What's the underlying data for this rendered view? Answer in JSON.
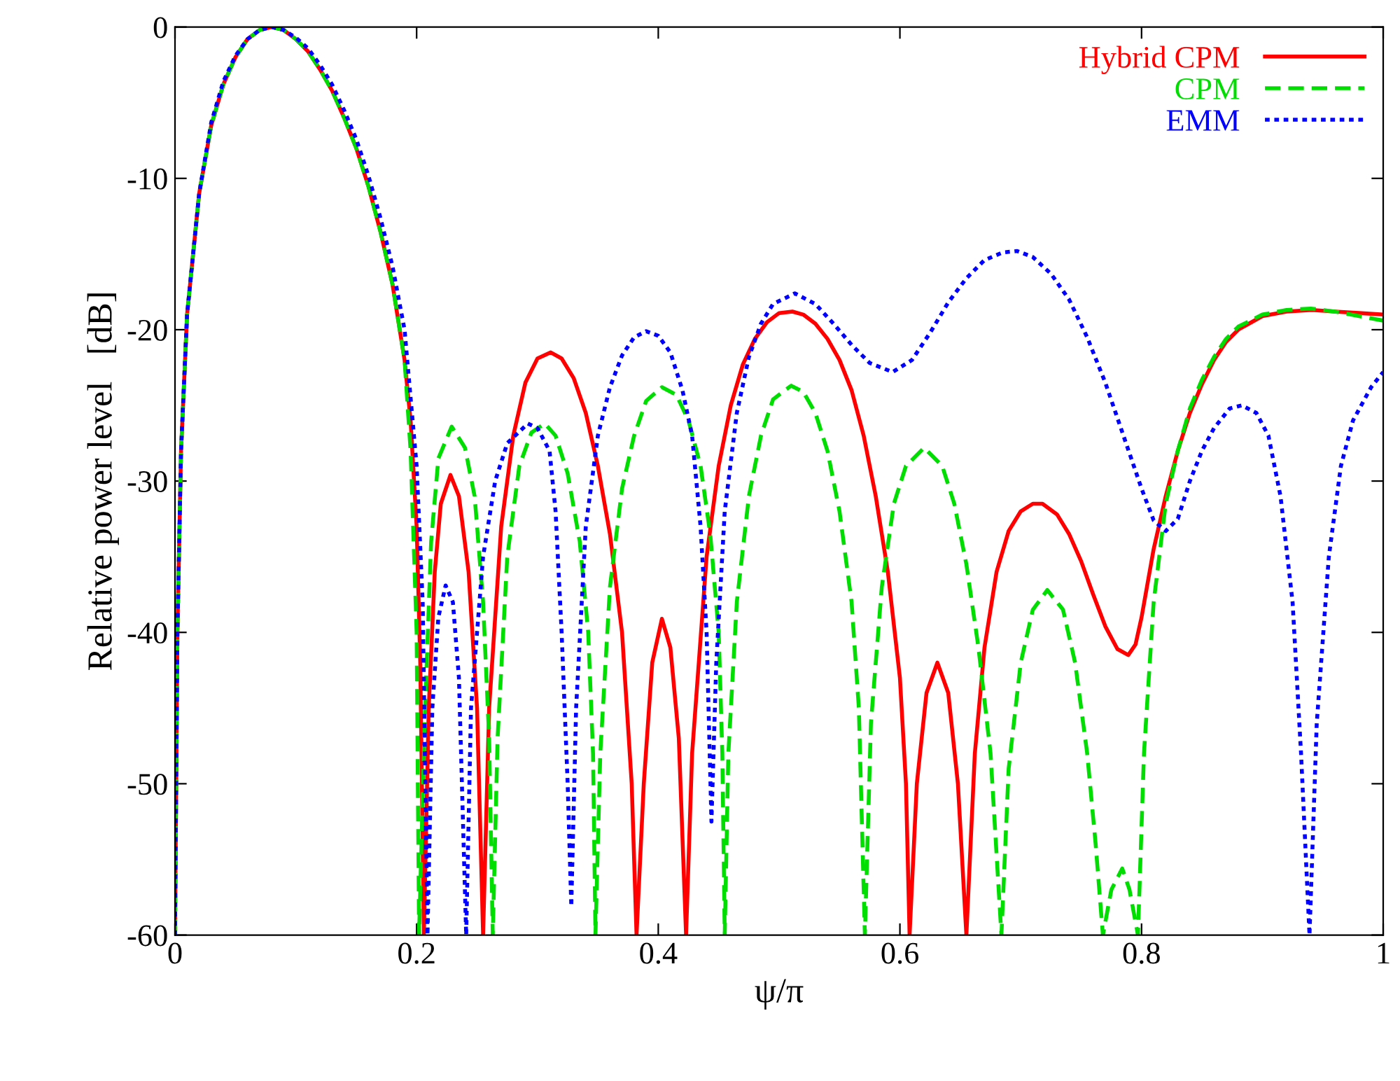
{
  "chart_data": {
    "type": "line",
    "xlabel": "ψ/π",
    "ylabel": "Relative power level   [dB]",
    "xlim": [
      0,
      1
    ],
    "ylim": [
      -60,
      0
    ],
    "xticks": [
      0,
      0.2,
      0.4,
      0.6,
      0.8,
      1
    ],
    "yticks": [
      0,
      -10,
      -20,
      -30,
      -40,
      -50,
      -60
    ],
    "grid": false,
    "legend": "top right",
    "series": [
      {
        "name": "Hybrid CPM",
        "color": "#ff0000",
        "line_style": "solid",
        "x": [
          0,
          0.002,
          0.005,
          0.01,
          0.02,
          0.03,
          0.04,
          0.05,
          0.06,
          0.07,
          0.08,
          0.09,
          0.1,
          0.11,
          0.12,
          0.13,
          0.14,
          0.15,
          0.16,
          0.17,
          0.18,
          0.19,
          0.195,
          0.2,
          0.203,
          0.206,
          0.21,
          0.215,
          0.22,
          0.228,
          0.235,
          0.243,
          0.25,
          0.255,
          0.26,
          0.27,
          0.28,
          0.29,
          0.3,
          0.311,
          0.32,
          0.33,
          0.34,
          0.35,
          0.36,
          0.37,
          0.378,
          0.382,
          0.388,
          0.395,
          0.403,
          0.41,
          0.417,
          0.423,
          0.428,
          0.44,
          0.45,
          0.46,
          0.47,
          0.48,
          0.49,
          0.5,
          0.511,
          0.52,
          0.53,
          0.54,
          0.55,
          0.56,
          0.57,
          0.58,
          0.59,
          0.6,
          0.605,
          0.608,
          0.614,
          0.622,
          0.631,
          0.64,
          0.648,
          0.655,
          0.662,
          0.67,
          0.68,
          0.69,
          0.7,
          0.71,
          0.718,
          0.73,
          0.74,
          0.75,
          0.76,
          0.77,
          0.78,
          0.789,
          0.795,
          0.8,
          0.81,
          0.82,
          0.83,
          0.84,
          0.85,
          0.86,
          0.87,
          0.88,
          0.9,
          0.92,
          0.941,
          0.96,
          0.98,
          1.0
        ],
        "values": [
          -60,
          -40,
          -28,
          -19,
          -11,
          -6.5,
          -3.8,
          -2,
          -0.8,
          -0.2,
          0,
          -0.2,
          -0.8,
          -1.6,
          -2.8,
          -4.2,
          -6,
          -8,
          -10.5,
          -13.5,
          -17,
          -22,
          -26,
          -33,
          -42,
          -60,
          -45,
          -36,
          -31.5,
          -29.6,
          -31,
          -36,
          -45,
          -60,
          -45,
          -33,
          -27,
          -23.5,
          -21.9,
          -21.5,
          -21.9,
          -23.2,
          -25.5,
          -29,
          -33.5,
          -40,
          -50,
          -60,
          -50,
          -42,
          -39.1,
          -41,
          -47,
          -60,
          -48,
          -35,
          -29,
          -25,
          -22.3,
          -20.6,
          -19.5,
          -18.9,
          -18.8,
          -19,
          -19.6,
          -20.6,
          -22,
          -24,
          -27,
          -31,
          -36,
          -43,
          -50,
          -60,
          -50,
          -44,
          -42,
          -44,
          -50,
          -60,
          -48,
          -41,
          -36,
          -33.3,
          -32,
          -31.5,
          -31.5,
          -32.2,
          -33.5,
          -35.3,
          -37.5,
          -39.6,
          -41.1,
          -41.5,
          -40.8,
          -39,
          -34.5,
          -31,
          -28,
          -25.5,
          -23.6,
          -22,
          -20.8,
          -20,
          -19.1,
          -18.8,
          -18.7,
          -18.8,
          -18.9,
          -19.0
        ]
      },
      {
        "name": "CPM",
        "color": "#00dd00",
        "line_style": "dashed",
        "x": [
          0,
          0.002,
          0.005,
          0.01,
          0.02,
          0.03,
          0.04,
          0.05,
          0.06,
          0.07,
          0.08,
          0.09,
          0.1,
          0.11,
          0.12,
          0.13,
          0.14,
          0.15,
          0.16,
          0.17,
          0.18,
          0.19,
          0.195,
          0.2,
          0.202,
          0.207,
          0.212,
          0.218,
          0.229,
          0.24,
          0.248,
          0.255,
          0.26,
          0.263,
          0.267,
          0.275,
          0.285,
          0.295,
          0.306,
          0.315,
          0.325,
          0.335,
          0.342,
          0.346,
          0.348,
          0.352,
          0.36,
          0.37,
          0.38,
          0.39,
          0.403,
          0.415,
          0.425,
          0.435,
          0.443,
          0.45,
          0.453,
          0.455,
          0.458,
          0.465,
          0.475,
          0.485,
          0.495,
          0.51,
          0.52,
          0.53,
          0.54,
          0.55,
          0.56,
          0.566,
          0.571,
          0.576,
          0.585,
          0.595,
          0.605,
          0.62,
          0.635,
          0.645,
          0.655,
          0.665,
          0.675,
          0.684,
          0.69,
          0.7,
          0.71,
          0.722,
          0.735,
          0.745,
          0.755,
          0.762,
          0.768,
          0.775,
          0.784,
          0.79,
          0.797,
          0.802,
          0.81,
          0.82,
          0.83,
          0.84,
          0.85,
          0.86,
          0.87,
          0.88,
          0.9,
          0.92,
          0.94,
          0.96,
          0.98,
          1.0
        ],
        "values": [
          -60,
          -40,
          -28,
          -19,
          -11,
          -6.5,
          -3.8,
          -2,
          -0.8,
          -0.2,
          0,
          -0.2,
          -0.8,
          -1.6,
          -2.8,
          -4.2,
          -6,
          -8,
          -10.5,
          -13.5,
          -17,
          -22,
          -28,
          -40,
          -60,
          -45,
          -34,
          -28.5,
          -26.4,
          -27.8,
          -31,
          -38,
          -47,
          -60,
          -47,
          -35,
          -29,
          -26.8,
          -26.2,
          -27,
          -29.5,
          -34,
          -40,
          -48,
          -60,
          -48,
          -37,
          -30.5,
          -27,
          -24.7,
          -23.8,
          -24.3,
          -26,
          -29,
          -33.5,
          -40,
          -48,
          -60,
          -48,
          -38,
          -31,
          -27,
          -24.6,
          -23.7,
          -24.1,
          -25.5,
          -28,
          -32,
          -38,
          -45,
          -60,
          -46,
          -37,
          -31.5,
          -29,
          -27.8,
          -29,
          -31.5,
          -35.5,
          -41,
          -48,
          -60,
          -49,
          -42,
          -38.5,
          -37.2,
          -38.5,
          -42,
          -48,
          -54,
          -60,
          -57,
          -55.6,
          -57,
          -60,
          -48,
          -38,
          -31.5,
          -28,
          -25.2,
          -23.3,
          -21.8,
          -20.6,
          -19.8,
          -19,
          -18.7,
          -18.6,
          -18.8,
          -19.1,
          -19.4
        ]
      },
      {
        "name": "EMM",
        "color": "#0000ff",
        "line_style": "dotted",
        "x": [
          0,
          0.002,
          0.005,
          0.01,
          0.02,
          0.03,
          0.04,
          0.05,
          0.06,
          0.07,
          0.08,
          0.09,
          0.1,
          0.11,
          0.12,
          0.13,
          0.14,
          0.15,
          0.16,
          0.17,
          0.18,
          0.19,
          0.2,
          0.205,
          0.209,
          0.213,
          0.218,
          0.224,
          0.23,
          0.235,
          0.241,
          0.245,
          0.255,
          0.265,
          0.275,
          0.292,
          0.3,
          0.31,
          0.315,
          0.32,
          0.325,
          0.328,
          0.332,
          0.34,
          0.35,
          0.36,
          0.37,
          0.38,
          0.39,
          0.4,
          0.41,
          0.42,
          0.428,
          0.435,
          0.44,
          0.444,
          0.448,
          0.455,
          0.465,
          0.475,
          0.485,
          0.495,
          0.513,
          0.53,
          0.545,
          0.56,
          0.575,
          0.594,
          0.61,
          0.625,
          0.64,
          0.655,
          0.67,
          0.685,
          0.697,
          0.71,
          0.725,
          0.74,
          0.755,
          0.77,
          0.785,
          0.8,
          0.81,
          0.82,
          0.83,
          0.84,
          0.85,
          0.86,
          0.873,
          0.883,
          0.895,
          0.905,
          0.915,
          0.925,
          0.932,
          0.939,
          0.945,
          0.955,
          0.965,
          0.975,
          0.99,
          1.0
        ],
        "values": [
          -60,
          -40,
          -28,
          -19,
          -11,
          -6.3,
          -3.6,
          -1.9,
          -0.8,
          -0.2,
          0,
          -0.2,
          -0.7,
          -1.4,
          -2.5,
          -3.8,
          -5.5,
          -7.4,
          -9.8,
          -12.6,
          -15.8,
          -20,
          -29,
          -38,
          -60,
          -45,
          -39,
          -36.9,
          -38,
          -43,
          -60,
          -45,
          -35,
          -30,
          -27.5,
          -26.2,
          -26.5,
          -28,
          -32,
          -40,
          -50,
          -58.1,
          -45,
          -33,
          -27,
          -23.8,
          -21.7,
          -20.5,
          -20.1,
          -20.4,
          -21.5,
          -24,
          -27,
          -33,
          -40,
          -52.5,
          -42,
          -32,
          -25.5,
          -21.8,
          -19.6,
          -18.3,
          -17.6,
          -18.3,
          -19.6,
          -21,
          -22.2,
          -22.8,
          -22,
          -20.2,
          -18.2,
          -16.6,
          -15.4,
          -14.9,
          -14.8,
          -15.2,
          -16.3,
          -18,
          -20.5,
          -23.5,
          -27,
          -30.5,
          -32.6,
          -33.3,
          -32.5,
          -30,
          -28,
          -26.5,
          -25.2,
          -25,
          -25.5,
          -27,
          -31,
          -38,
          -48,
          -60,
          -46,
          -35,
          -29,
          -26,
          -23.8,
          -22.8
        ]
      }
    ]
  }
}
